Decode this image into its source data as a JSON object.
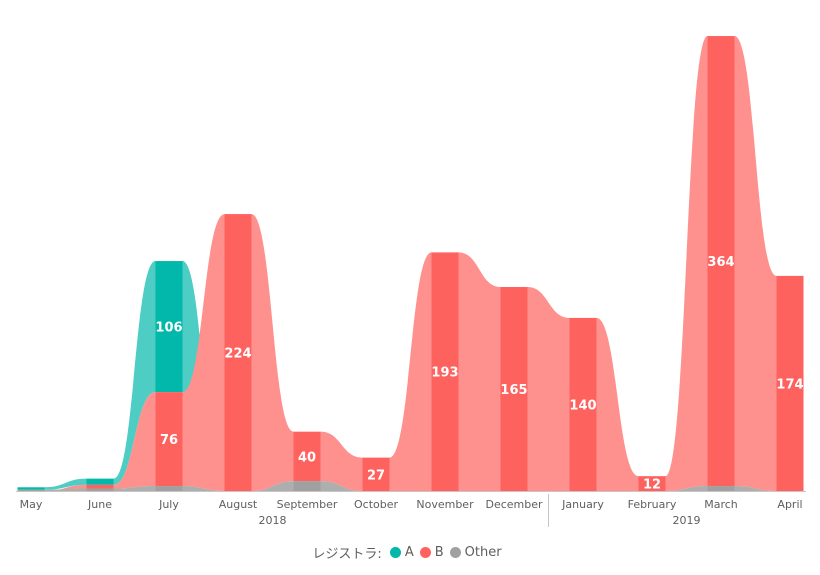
{
  "chart_data": {
    "type": "ribbon",
    "categories": [
      "May",
      "June",
      "July",
      "August",
      "September",
      "October",
      "November",
      "December",
      "January",
      "February",
      "March",
      "April"
    ],
    "year_groups": [
      {
        "label": "2018",
        "from": 0,
        "to": 7
      },
      {
        "label": "2019",
        "from": 8,
        "to": 11
      }
    ],
    "series": [
      {
        "name": "A",
        "color": "#01b8aa",
        "values": [
          2,
          5,
          106,
          0,
          0,
          0,
          0,
          0,
          0,
          0,
          0,
          0
        ]
      },
      {
        "name": "B",
        "color": "#fd625e",
        "values": [
          0,
          3,
          76,
          224,
          40,
          27,
          193,
          165,
          140,
          12,
          364,
          174
        ]
      },
      {
        "name": "Other",
        "color": "#a0a0a0",
        "values": [
          1,
          2,
          4,
          0,
          8,
          0,
          0,
          0,
          0,
          0,
          4,
          0
        ]
      }
    ],
    "data_labels": [
      {
        "series": "A",
        "index": 2,
        "text": "106"
      },
      {
        "series": "B",
        "index": 2,
        "text": "76"
      },
      {
        "series": "B",
        "index": 3,
        "text": "224"
      },
      {
        "series": "B",
        "index": 4,
        "text": "40"
      },
      {
        "series": "B",
        "index": 5,
        "text": "27"
      },
      {
        "series": "B",
        "index": 6,
        "text": "193"
      },
      {
        "series": "B",
        "index": 7,
        "text": "165"
      },
      {
        "series": "B",
        "index": 8,
        "text": "140"
      },
      {
        "series": "B",
        "index": 9,
        "text": "12"
      },
      {
        "series": "B",
        "index": 10,
        "text": "364"
      },
      {
        "series": "B",
        "index": 11,
        "text": "174"
      }
    ],
    "ylim": [
      0,
      364
    ],
    "legend": {
      "title": "レジストラ:",
      "position": "bottom-center"
    }
  }
}
